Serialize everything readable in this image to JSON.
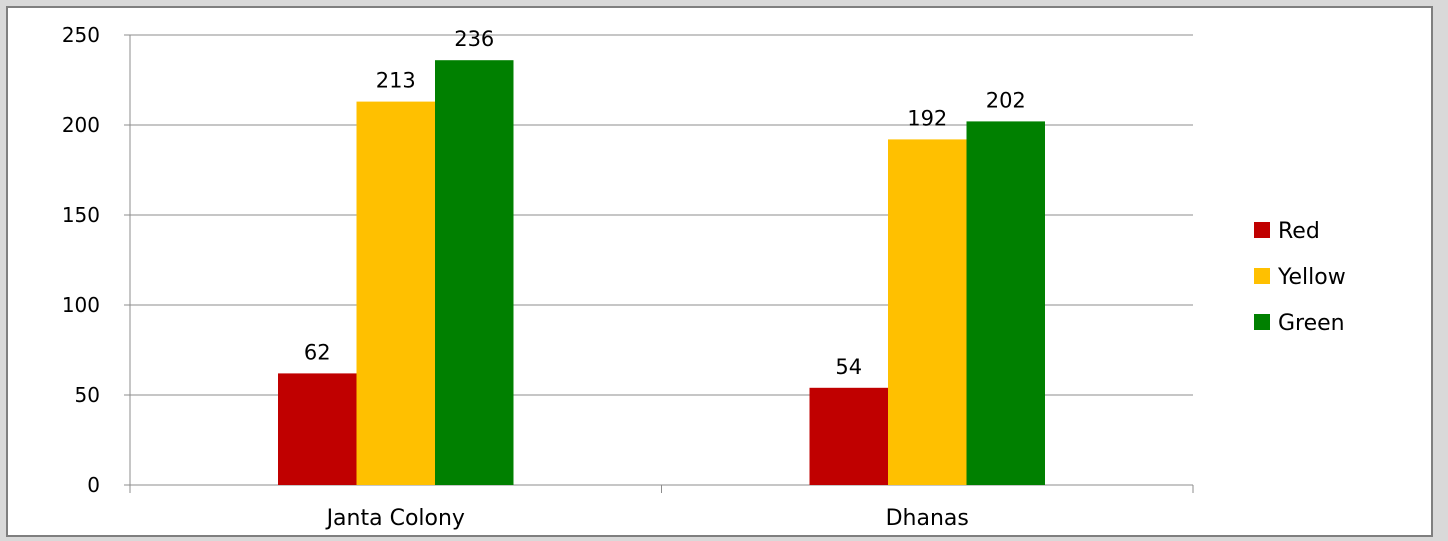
{
  "chart_data": {
    "type": "bar",
    "title": "",
    "xlabel": "",
    "ylabel": "",
    "categories": [
      "Janta Colony",
      "Dhanas"
    ],
    "series": [
      {
        "name": "Red",
        "color": "#c00000",
        "values": [
          62,
          54
        ]
      },
      {
        "name": "Yellow",
        "color": "#ffc000",
        "values": [
          213,
          192
        ]
      },
      {
        "name": "Green",
        "color": "#008000",
        "values": [
          236,
          202
        ]
      }
    ],
    "ylim": [
      0,
      250
    ],
    "yticks": [
      0,
      50,
      100,
      150,
      200,
      250
    ],
    "grid": true,
    "legend_position": "right"
  }
}
